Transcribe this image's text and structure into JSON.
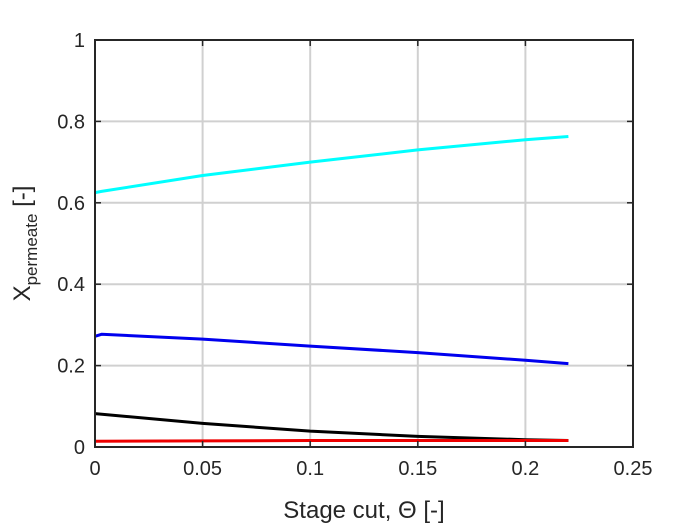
{
  "chart_data": {
    "type": "line",
    "xlabel": "Stage cut, Θ [-]",
    "ylabel": {
      "main": "X",
      "subscript": "permeate",
      "suffix": " [-]"
    },
    "xlim": [
      0,
      0.25
    ],
    "ylim": [
      0,
      1
    ],
    "xticks": [
      0,
      0.05,
      0.1,
      0.15,
      0.2,
      0.25
    ],
    "xtick_labels": [
      "0",
      "0.05",
      "0.1",
      "0.15",
      "0.2",
      "0.25"
    ],
    "yticks": [
      0,
      0.2,
      0.4,
      0.6,
      0.8,
      1
    ],
    "ytick_labels": [
      "0",
      "0.2",
      "0.4",
      "0.6",
      "0.8",
      "1"
    ],
    "grid": true,
    "legend": "none",
    "series": [
      {
        "color": "#00ffff",
        "x": [
          0,
          0.003,
          0.05,
          0.1,
          0.15,
          0.2,
          0.22
        ],
        "y": [
          0.625,
          0.628,
          0.667,
          0.7,
          0.73,
          0.755,
          0.763
        ]
      },
      {
        "color": "#0000ee",
        "x": [
          0,
          0.003,
          0.05,
          0.1,
          0.15,
          0.2,
          0.22
        ],
        "y": [
          0.272,
          0.277,
          0.265,
          0.248,
          0.232,
          0.213,
          0.205
        ]
      },
      {
        "color": "#000000",
        "x": [
          0,
          0.05,
          0.1,
          0.15,
          0.2,
          0.22
        ],
        "y": [
          0.082,
          0.058,
          0.039,
          0.026,
          0.018,
          0.016
        ]
      },
      {
        "color": "#ee0000",
        "x": [
          0,
          0.05,
          0.1,
          0.15,
          0.2,
          0.22
        ],
        "y": [
          0.014,
          0.015,
          0.016,
          0.016,
          0.016,
          0.016
        ]
      }
    ]
  }
}
